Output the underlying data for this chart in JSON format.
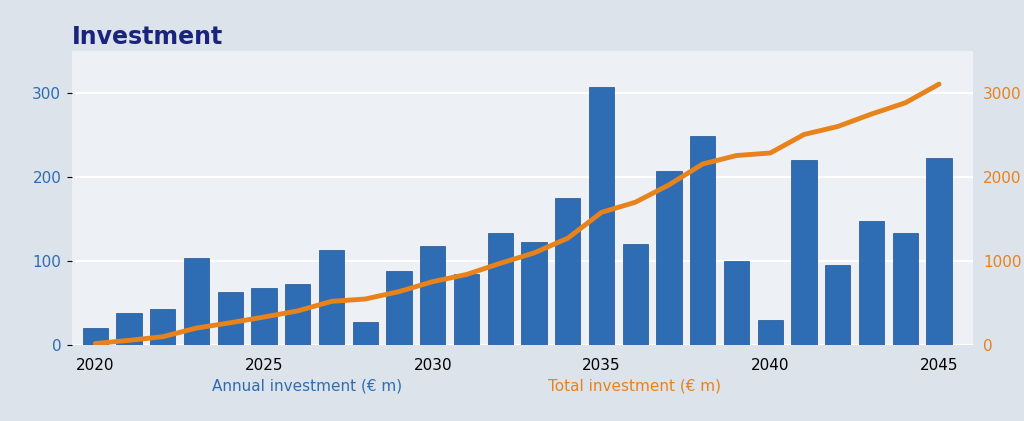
{
  "years": [
    2020,
    2021,
    2022,
    2023,
    2024,
    2025,
    2026,
    2027,
    2028,
    2029,
    2030,
    2031,
    2032,
    2033,
    2034,
    2035,
    2036,
    2037,
    2038,
    2039,
    2040,
    2041,
    2042,
    2043,
    2044,
    2045
  ],
  "annual_investment": [
    20,
    38,
    43,
    103,
    63,
    68,
    73,
    113,
    28,
    88,
    118,
    85,
    133,
    123,
    175,
    307,
    120,
    207,
    248,
    100,
    30,
    220,
    95,
    148,
    133,
    222
  ],
  "total_investment": [
    20,
    58,
    101,
    204,
    267,
    335,
    408,
    521,
    549,
    637,
    755,
    840,
    973,
    1096,
    1271,
    1578,
    1698,
    1905,
    2153,
    2253,
    2283,
    2503,
    2598,
    2746,
    2879,
    3101
  ],
  "bar_color": "#2e6db4",
  "bar_edge_color": "#1f5090",
  "line_color": "#e8821a",
  "left_axis_color": "#2e6db4",
  "right_axis_color": "#e8821a",
  "title": "Investment",
  "title_color": "#1a237e",
  "xlabel_annual": "Annual investment (€ m)",
  "xlabel_total": "Total investment (€ m)",
  "xlabel_annual_color": "#2e6db4",
  "xlabel_total_color": "#e8821a",
  "ylim_left": [
    0,
    350
  ],
  "ylim_right": [
    0,
    3500
  ],
  "yticks_left": [
    0,
    100,
    200,
    300
  ],
  "yticks_right": [
    0,
    1000,
    2000,
    3000
  ],
  "outer_background_color": "#dce3ea",
  "plot_background_color": "#edf1f5",
  "grid_color": "#ffffff",
  "title_fontsize": 17,
  "axis_label_fontsize": 11,
  "tick_fontsize": 11
}
